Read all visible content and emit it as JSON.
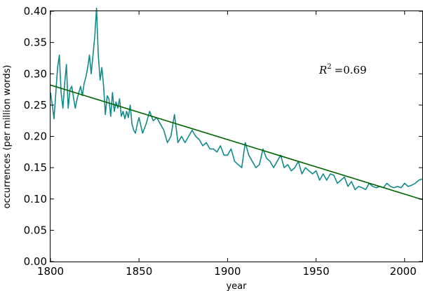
{
  "chart_data": {
    "type": "line",
    "xlabel": "year",
    "ylabel": "occurrences (per million words)",
    "xlim": [
      1800,
      2010
    ],
    "ylim": [
      0.0,
      0.4
    ],
    "xticks": [
      1800,
      1850,
      1900,
      1950,
      2000
    ],
    "xtick_labels": [
      "1800",
      "1850",
      "1900",
      "1950",
      "2000"
    ],
    "yticks": [
      0.0,
      0.05,
      0.1,
      0.15,
      0.2,
      0.25,
      0.3,
      0.35,
      0.4
    ],
    "ytick_labels": [
      "0.00",
      "0.05",
      "0.10",
      "0.15",
      "0.20",
      "0.25",
      "0.30",
      "0.35",
      "0.40"
    ],
    "grid": false,
    "annotation": {
      "r2_symbol": "R",
      "r2_sup": "2",
      "r2_text": "=0.69"
    },
    "series": [
      {
        "role": "observed",
        "color": "#138a8a",
        "x": [
          1800,
          1801,
          1802,
          1803,
          1804,
          1805,
          1806,
          1807,
          1808,
          1809,
          1810,
          1811,
          1812,
          1813,
          1814,
          1815,
          1816,
          1817,
          1818,
          1819,
          1820,
          1821,
          1822,
          1823,
          1824,
          1825,
          1826,
          1827,
          1828,
          1829,
          1830,
          1831,
          1832,
          1833,
          1834,
          1835,
          1836,
          1837,
          1838,
          1839,
          1840,
          1841,
          1842,
          1843,
          1844,
          1845,
          1846,
          1847,
          1848,
          1849,
          1850,
          1852,
          1854,
          1856,
          1858,
          1860,
          1862,
          1864,
          1866,
          1868,
          1870,
          1872,
          1874,
          1876,
          1878,
          1880,
          1882,
          1884,
          1886,
          1888,
          1890,
          1892,
          1894,
          1896,
          1898,
          1900,
          1902,
          1904,
          1906,
          1908,
          1910,
          1912,
          1914,
          1916,
          1918,
          1920,
          1922,
          1924,
          1926,
          1928,
          1930,
          1932,
          1934,
          1936,
          1938,
          1940,
          1942,
          1944,
          1946,
          1948,
          1950,
          1952,
          1954,
          1956,
          1958,
          1960,
          1962,
          1964,
          1966,
          1968,
          1970,
          1972,
          1974,
          1976,
          1978,
          1980,
          1982,
          1984,
          1986,
          1988,
          1990,
          1992,
          1994,
          1996,
          1998,
          2000,
          2002,
          2004,
          2006,
          2008,
          2010
        ],
        "y": [
          0.27,
          0.25,
          0.228,
          0.27,
          0.31,
          0.33,
          0.27,
          0.245,
          0.285,
          0.315,
          0.245,
          0.275,
          0.28,
          0.262,
          0.245,
          0.26,
          0.27,
          0.28,
          0.265,
          0.285,
          0.295,
          0.31,
          0.33,
          0.3,
          0.33,
          0.36,
          0.405,
          0.33,
          0.29,
          0.31,
          0.28,
          0.235,
          0.265,
          0.26,
          0.232,
          0.27,
          0.24,
          0.255,
          0.245,
          0.26,
          0.232,
          0.24,
          0.228,
          0.24,
          0.23,
          0.25,
          0.22,
          0.21,
          0.205,
          0.22,
          0.23,
          0.205,
          0.22,
          0.24,
          0.225,
          0.23,
          0.22,
          0.21,
          0.19,
          0.2,
          0.235,
          0.19,
          0.2,
          0.19,
          0.2,
          0.21,
          0.2,
          0.195,
          0.185,
          0.19,
          0.18,
          0.18,
          0.175,
          0.185,
          0.17,
          0.17,
          0.18,
          0.16,
          0.155,
          0.15,
          0.19,
          0.17,
          0.16,
          0.15,
          0.155,
          0.18,
          0.165,
          0.16,
          0.15,
          0.16,
          0.17,
          0.15,
          0.155,
          0.145,
          0.15,
          0.16,
          0.14,
          0.15,
          0.145,
          0.14,
          0.145,
          0.13,
          0.14,
          0.13,
          0.14,
          0.138,
          0.125,
          0.13,
          0.135,
          0.12,
          0.128,
          0.115,
          0.12,
          0.118,
          0.115,
          0.125,
          0.12,
          0.118,
          0.12,
          0.118,
          0.125,
          0.12,
          0.118,
          0.12,
          0.118,
          0.125,
          0.12,
          0.122,
          0.125,
          0.13,
          0.132
        ]
      },
      {
        "role": "fit",
        "color": "#006400",
        "x": [
          1800,
          2010
        ],
        "y": [
          0.282,
          0.099
        ]
      }
    ]
  }
}
